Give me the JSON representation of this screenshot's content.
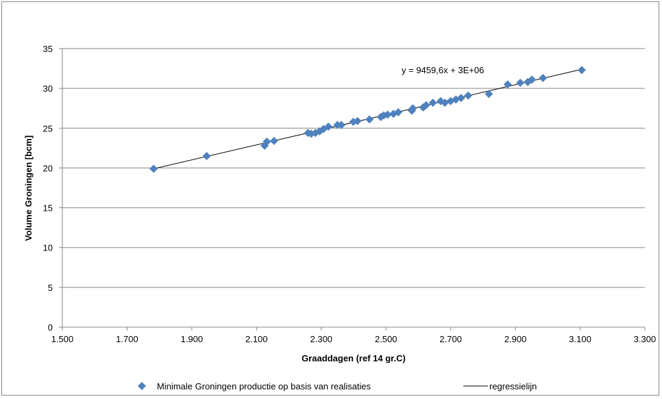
{
  "chart_data": {
    "type": "scatter",
    "xlabel": "Graaddagen (ref 14 gr.C)",
    "ylabel": "Volume Groningen [bcm]",
    "xlim": [
      1500,
      3300
    ],
    "ylim": [
      0,
      35
    ],
    "x_ticks": [
      1500,
      1700,
      1900,
      2100,
      2300,
      2500,
      2700,
      2900,
      3100,
      3300
    ],
    "x_tick_labels": [
      "1.500",
      "1.700",
      "1.900",
      "2.100",
      "2.300",
      "2.500",
      "2.700",
      "2.900",
      "3.100",
      "3.300"
    ],
    "y_ticks": [
      0,
      5,
      10,
      15,
      20,
      25,
      30,
      35
    ],
    "y_tick_labels": [
      "0",
      "5",
      "10",
      "15",
      "20",
      "25",
      "30",
      "35"
    ],
    "grid": "horizontal",
    "legend_position": "bottom",
    "annotation": "y = 9459,6x + 3E+06",
    "series": [
      {
        "name": "Minimale Groningen productie op basis van realisaties",
        "kind": "scatter",
        "marker": "diamond",
        "color": "#4F81BD",
        "points": [
          [
            1782,
            19.9
          ],
          [
            1946,
            21.5
          ],
          [
            2125,
            22.8
          ],
          [
            2132,
            23.3
          ],
          [
            2154,
            23.4
          ],
          [
            2259,
            24.4
          ],
          [
            2269,
            24.3
          ],
          [
            2282,
            24.4
          ],
          [
            2295,
            24.6
          ],
          [
            2307,
            24.9
          ],
          [
            2322,
            25.2
          ],
          [
            2350,
            25.4
          ],
          [
            2362,
            25.4
          ],
          [
            2399,
            25.8
          ],
          [
            2412,
            25.9
          ],
          [
            2449,
            26.1
          ],
          [
            2484,
            26.4
          ],
          [
            2493,
            26.6
          ],
          [
            2505,
            26.7
          ],
          [
            2523,
            26.8
          ],
          [
            2538,
            27.0
          ],
          [
            2580,
            27.2
          ],
          [
            2583,
            27.5
          ],
          [
            2615,
            27.6
          ],
          [
            2624,
            27.9
          ],
          [
            2645,
            28.2
          ],
          [
            2669,
            28.4
          ],
          [
            2682,
            28.2
          ],
          [
            2700,
            28.4
          ],
          [
            2716,
            28.6
          ],
          [
            2732,
            28.8
          ],
          [
            2754,
            29.1
          ],
          [
            2818,
            29.3
          ],
          [
            2876,
            30.5
          ],
          [
            2915,
            30.7
          ],
          [
            2938,
            30.8
          ],
          [
            2951,
            31.1
          ],
          [
            2985,
            31.3
          ],
          [
            3105,
            32.3
          ]
        ]
      },
      {
        "name": "regressielijn",
        "kind": "line",
        "color": "#000000",
        "points": [
          [
            1782,
            19.9
          ],
          [
            3105,
            32.4
          ]
        ]
      }
    ]
  }
}
